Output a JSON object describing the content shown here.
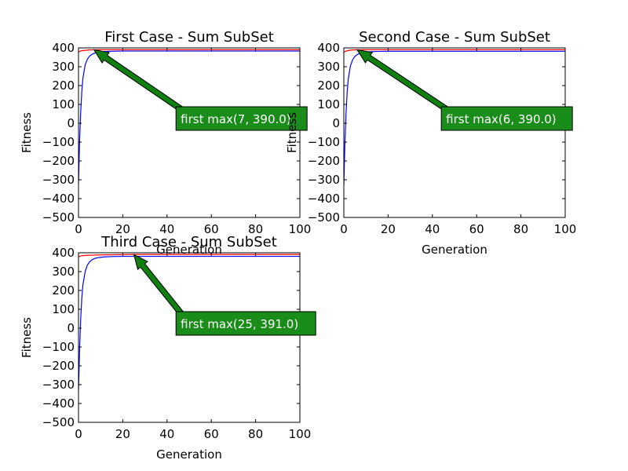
{
  "chart_data": [
    {
      "type": "line",
      "title": "First Case - Sum SubSet",
      "xlabel": "Generation",
      "ylabel": "Fitness",
      "xlim": [
        0,
        100
      ],
      "ylim": [
        -500,
        400
      ],
      "xticks": [
        "0",
        "20",
        "40",
        "60",
        "80",
        "100"
      ],
      "yticks": [
        "400",
        "300",
        "200",
        "100",
        "0",
        "−100",
        "−200",
        "−300",
        "−400",
        "−500"
      ],
      "series": [
        {
          "color": "#ff0000",
          "x": [
            0,
            1,
            2,
            3,
            5,
            7,
            10,
            20,
            40,
            60,
            80,
            100
          ],
          "y": [
            378,
            384,
            386,
            387,
            389,
            390,
            390,
            390,
            390,
            390,
            390,
            390
          ]
        },
        {
          "color": "#0000ff",
          "x": [
            0,
            0.5,
            1,
            1.5,
            2,
            3,
            4,
            5,
            6,
            7,
            8,
            10,
            12,
            15,
            20,
            30,
            50,
            100
          ],
          "y": [
            -320,
            -90,
            60,
            170,
            240,
            310,
            340,
            356,
            365,
            371,
            375,
            379,
            381,
            382,
            383,
            383,
            383,
            383
          ]
        }
      ],
      "annotation": {
        "text": "first max(7, 390.0)",
        "xy": [
          7,
          390
        ],
        "xytext": [
          49,
          0
        ]
      }
    },
    {
      "type": "line",
      "title": "Second Case - Sum SubSet",
      "xlabel": "Generation",
      "ylabel": "Fitness",
      "xlim": [
        0,
        100
      ],
      "ylim": [
        -500,
        400
      ],
      "xticks": [
        "0",
        "20",
        "40",
        "60",
        "80",
        "100"
      ],
      "yticks": [
        "400",
        "300",
        "200",
        "100",
        "0",
        "−100",
        "−200",
        "−300",
        "−400",
        "−500"
      ],
      "series": [
        {
          "color": "#ff0000",
          "x": [
            0,
            1,
            2,
            3,
            4,
            6,
            10,
            20,
            40,
            60,
            80,
            100
          ],
          "y": [
            377,
            383,
            386,
            388,
            389,
            390,
            390,
            390,
            390,
            390,
            390,
            390
          ]
        },
        {
          "color": "#0000ff",
          "x": [
            0,
            0.5,
            1,
            1.5,
            2,
            3,
            4,
            5,
            6,
            7,
            8,
            10,
            12,
            15,
            20,
            30,
            50,
            100
          ],
          "y": [
            -330,
            -100,
            55,
            165,
            235,
            305,
            338,
            355,
            364,
            370,
            374,
            378,
            380,
            381,
            382,
            382,
            382,
            382
          ]
        }
      ],
      "annotation": {
        "text": "first max(6, 390.0)",
        "xy": [
          6,
          390
        ],
        "xytext": [
          49,
          0
        ]
      }
    },
    {
      "type": "line",
      "title": "Third Case - Sum SubSet",
      "xlabel": "Generation",
      "ylabel": "Fitness",
      "xlim": [
        0,
        100
      ],
      "ylim": [
        -500,
        400
      ],
      "xticks": [
        "0",
        "20",
        "40",
        "60",
        "80",
        "100"
      ],
      "yticks": [
        "400",
        "300",
        "200",
        "100",
        "0",
        "−100",
        "−200",
        "−300",
        "−400",
        "−500"
      ],
      "series": [
        {
          "color": "#ff0000",
          "x": [
            0,
            1,
            2,
            3,
            5,
            8,
            12,
            18,
            25,
            40,
            60,
            80,
            100
          ],
          "y": [
            378,
            383,
            385,
            386,
            387,
            388,
            389,
            390,
            391,
            391,
            391,
            391,
            391
          ]
        },
        {
          "color": "#0000ff",
          "x": [
            0,
            0.5,
            1,
            1.5,
            2,
            3,
            4,
            5,
            6,
            7,
            8,
            10,
            12,
            15,
            20,
            30,
            50,
            100
          ],
          "y": [
            -330,
            -110,
            50,
            160,
            230,
            300,
            335,
            352,
            362,
            368,
            372,
            376,
            378,
            380,
            381,
            381,
            381,
            381
          ]
        }
      ],
      "annotation": {
        "text": "first max(25, 391.0)",
        "xy": [
          25,
          391
        ],
        "xytext": [
          49,
          0
        ]
      }
    }
  ],
  "style": {
    "annotation_fill": "#1a8c1a",
    "arrow_fill": "#0f7f0f"
  }
}
